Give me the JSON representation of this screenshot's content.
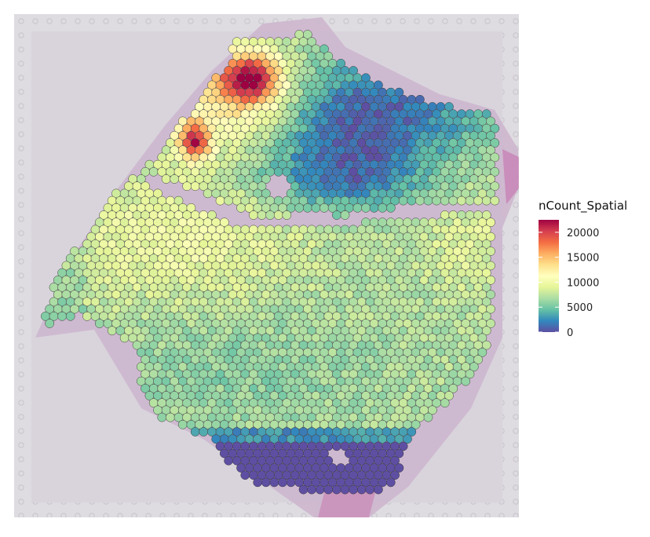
{
  "chart_data": {
    "type": "heatmap",
    "subtype": "spatial-transcriptomics-spot-plot",
    "title": "",
    "xlabel": "",
    "ylabel": "",
    "legend": {
      "title": "nCount_Spatial",
      "ticks": [
        0,
        5000,
        10000,
        15000,
        20000
      ],
      "tick_labels": [
        "0",
        "5000",
        "10000",
        "15000",
        "20000"
      ],
      "range": [
        0,
        22500
      ],
      "placement": "right",
      "colormap": "Spectral (reversed)"
    },
    "colors": {
      "low": "#5e4fa2",
      "mid": "#ffffbf",
      "high": "#9e0142",
      "tissue_background": "#cdbccf",
      "slide_frame": "#dcd9df",
      "spot_outline": "#3a3a3a"
    },
    "regions": [
      {
        "name": "top-left hotspot",
        "approx_nCount": 21000
      },
      {
        "name": "left small hotspot",
        "approx_nCount": 20000
      },
      {
        "name": "upper-right band",
        "approx_nCount": 2000
      },
      {
        "name": "bottom band",
        "approx_nCount": 500
      },
      {
        "name": "central body",
        "approx_nCount": 6000
      }
    ]
  }
}
